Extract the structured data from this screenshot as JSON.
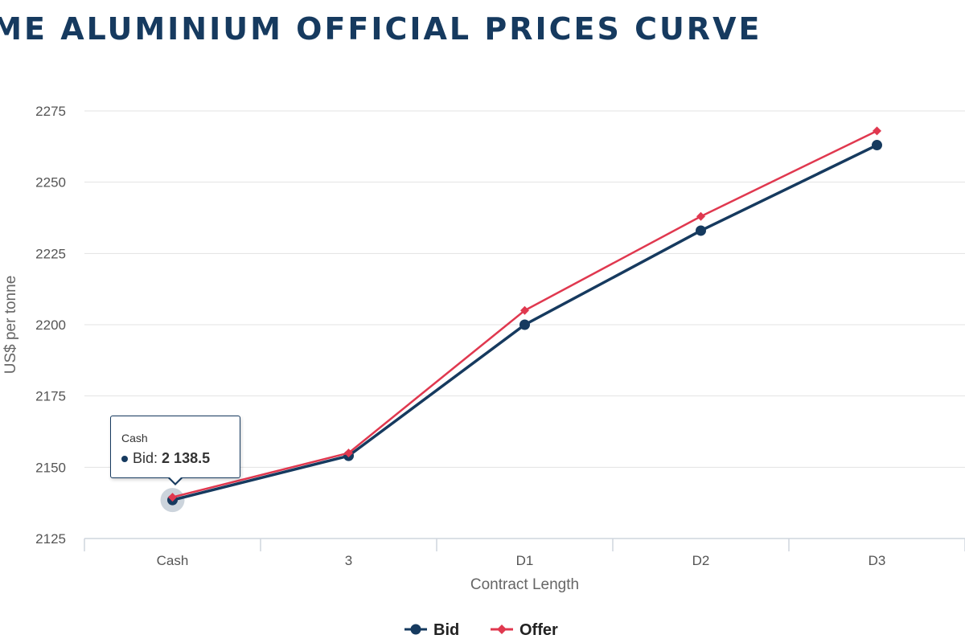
{
  "chart_data": {
    "type": "line",
    "title": "LME ALUMINIUM OFFICIAL PRICES CURVE",
    "xlabel": "Contract Length",
    "ylabel": "US$ per tonne",
    "categories": [
      "Cash",
      "3",
      "D1",
      "D2",
      "D3"
    ],
    "yticks": [
      "2125",
      "2150",
      "2175",
      "2200",
      "2225",
      "2250",
      "2275"
    ],
    "ylim": [
      2125,
      2275
    ],
    "grid": true,
    "legend_position": "bottom-center",
    "series": [
      {
        "name": "Bid",
        "values": [
          2138.5,
          2154,
          2200,
          2233,
          2263
        ],
        "color": "#163a5f",
        "marker": "circle"
      },
      {
        "name": "Offer",
        "values": [
          2139.5,
          2155,
          2205,
          2238,
          2268
        ],
        "color": "#e0384f",
        "marker": "diamond"
      }
    ],
    "tooltip": {
      "category": "Cash",
      "series": "Bid",
      "label": "Bid:",
      "value": "2 138.5"
    }
  }
}
